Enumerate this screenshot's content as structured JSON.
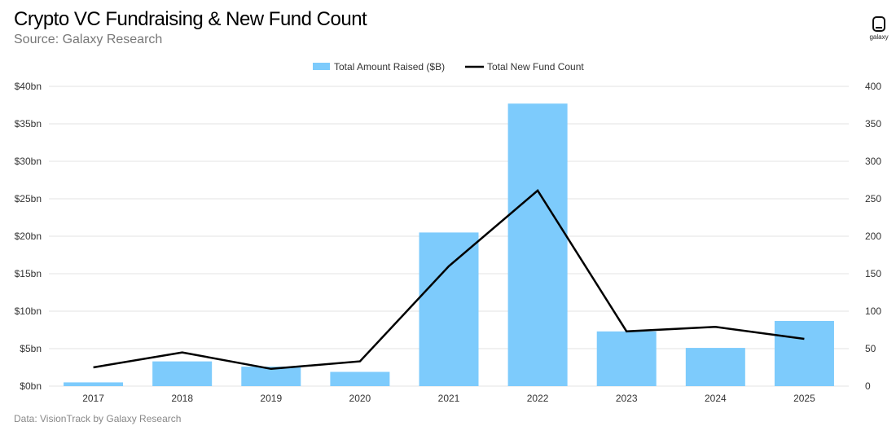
{
  "header": {
    "title": "Crypto VC Fundraising & New Fund Count",
    "subtitle": "Source: Galaxy Research"
  },
  "logo": {
    "text": "galaxy",
    "icon": "galaxy-logo-icon"
  },
  "footer": {
    "text": "Data: VisionTrack by Galaxy Research"
  },
  "colors": {
    "bar": "#7dcbfc",
    "line": "#000000",
    "grid": "#e3e3e3"
  },
  "chart_data": {
    "type": "bar",
    "title": "Crypto VC Fundraising & New Fund Count",
    "categories": [
      "2017",
      "2018",
      "2019",
      "2020",
      "2021",
      "2022",
      "2023",
      "2024",
      "2025"
    ],
    "series": [
      {
        "name": "Total Amount Raised ($B)",
        "type": "bar",
        "axis": "left",
        "values": [
          0.5,
          3.3,
          2.6,
          1.9,
          20.5,
          37.7,
          7.3,
          5.1,
          8.7
        ]
      },
      {
        "name": "Total New Fund Count",
        "type": "line",
        "axis": "right",
        "values": [
          25,
          45,
          23,
          33,
          160,
          261,
          73,
          79,
          63
        ]
      }
    ],
    "y_left": {
      "ylim": [
        0,
        40
      ],
      "tick_labels": [
        "$0bn",
        "$5bn",
        "$10bn",
        "$15bn",
        "$20bn",
        "$25bn",
        "$30bn",
        "$35bn",
        "$40bn"
      ]
    },
    "y_right": {
      "ylim": [
        0,
        400
      ],
      "tick_labels": [
        "0",
        "50",
        "100",
        "150",
        "200",
        "250",
        "300",
        "350",
        "400"
      ]
    },
    "grid": true,
    "legend_position": "top-center"
  }
}
